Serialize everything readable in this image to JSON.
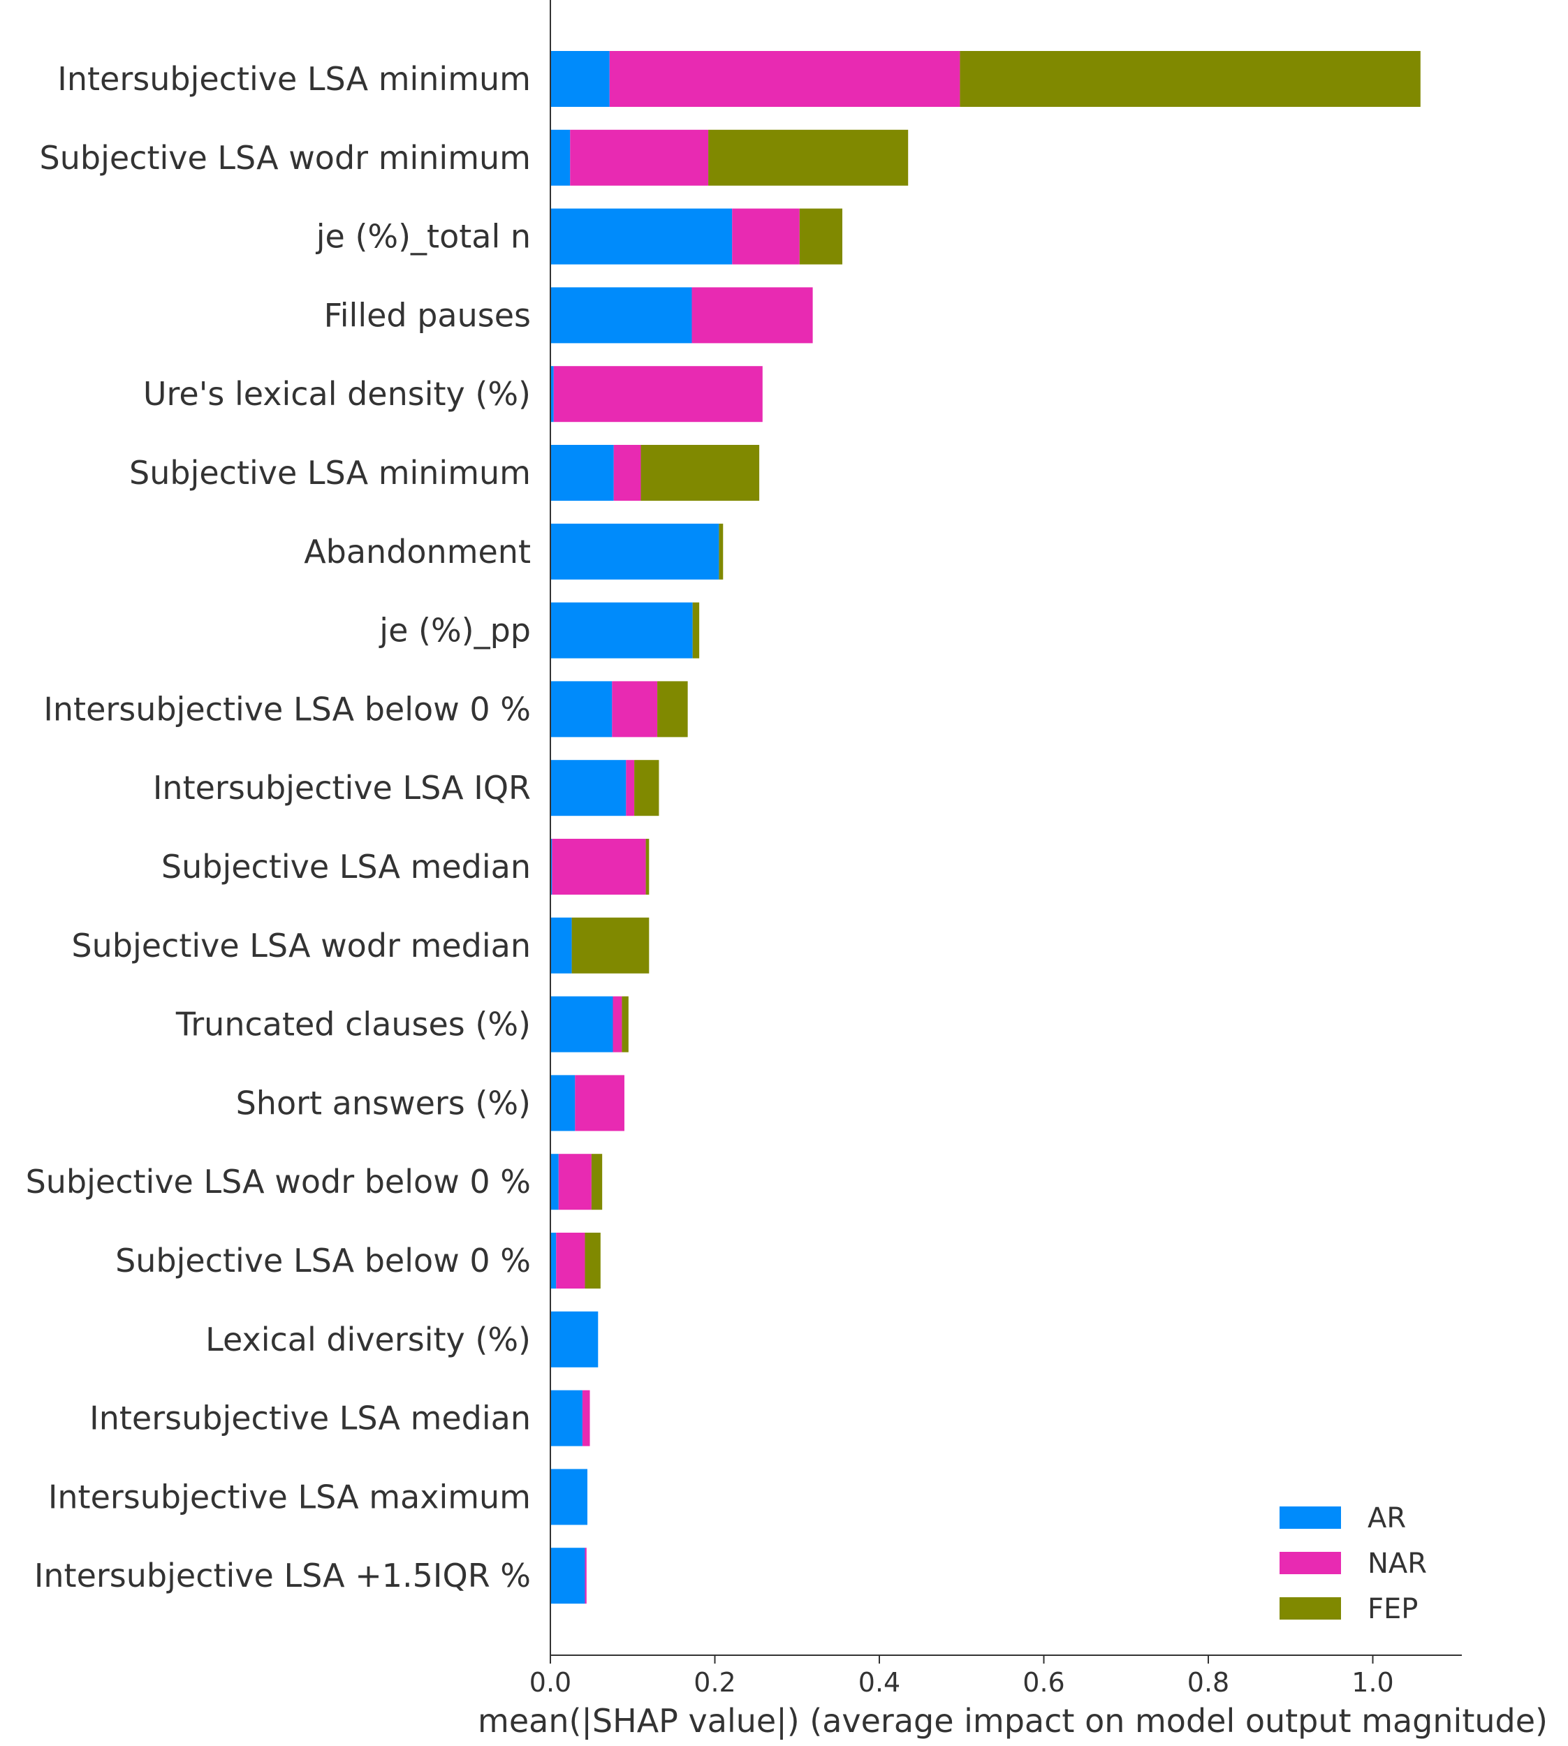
{
  "chart_data": {
    "type": "bar",
    "stacked": true,
    "orientation": "horizontal",
    "title": "",
    "xlabel": "mean(|SHAP value|) (average impact on model output magnitude)",
    "ylabel": "",
    "xlim": [
      0,
      1.1
    ],
    "xticks": [
      0.0,
      0.2,
      0.4,
      0.6,
      0.8,
      1.0
    ],
    "xtick_labels": [
      "0.0",
      "0.2",
      "0.4",
      "0.6",
      "0.8",
      "1.0"
    ],
    "grid": false,
    "legend_position": "bottom-right",
    "categories": [
      "Intersubjective LSA minimum",
      "Subjective LSA wodr minimum",
      "je (%)_total n",
      "Filled pauses",
      "Ure's lexical density (%)",
      "Subjective LSA minimum",
      "Abandonment",
      "je (%)_pp",
      "Intersubjective LSA below 0 %",
      "Intersubjective LSA IQR",
      "Subjective LSA median",
      "Subjective LSA wodr median",
      "Truncated clauses (%)",
      "Short answers (%)",
      "Subjective LSA wodr below 0 %",
      "Subjective LSA below 0 %",
      "Lexical diversity (%)",
      "Intersubjective LSA median",
      "Intersubjective LSA maximum",
      "Intersubjective LSA +1.5IQR %"
    ],
    "series": [
      {
        "name": "AR",
        "color": "#008bfb",
        "values": [
          0.072,
          0.024,
          0.221,
          0.172,
          0.004,
          0.077,
          0.205,
          0.173,
          0.075,
          0.092,
          0.002,
          0.026,
          0.076,
          0.03,
          0.01,
          0.007,
          0.058,
          0.039,
          0.045,
          0.042
        ]
      },
      {
        "name": "NAR",
        "color": "#e82ab2",
        "values": [
          0.426,
          0.168,
          0.082,
          0.147,
          0.254,
          0.033,
          0.0,
          0.0,
          0.055,
          0.01,
          0.114,
          0.0,
          0.011,
          0.06,
          0.04,
          0.035,
          0.0,
          0.009,
          0.0,
          0.002
        ]
      },
      {
        "name": "FEP",
        "color": "#808900",
        "values": [
          0.56,
          0.243,
          0.052,
          0.0,
          0.0,
          0.144,
          0.005,
          0.008,
          0.037,
          0.03,
          0.004,
          0.094,
          0.008,
          0.0,
          0.013,
          0.019,
          0.0,
          0.0,
          0.0,
          0.0
        ]
      }
    ]
  }
}
